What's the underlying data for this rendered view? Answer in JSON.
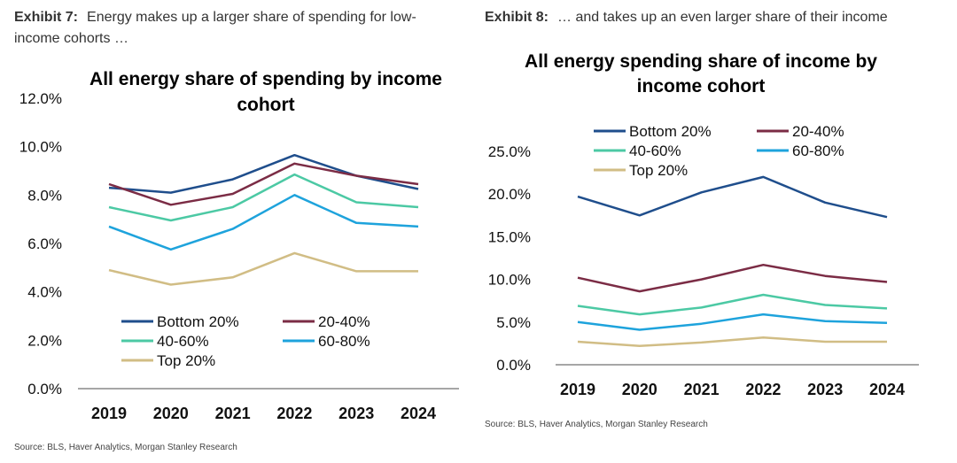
{
  "exhibits": [
    {
      "label": "Exhibit 7:",
      "caption": "Energy makes up a larger share of spending for low-income cohorts …",
      "source": "Source: BLS, Haver Analytics, Morgan Stanley Research"
    },
    {
      "label": "Exhibit 8:",
      "caption": "… and takes up an even larger share of their income",
      "source": "Source: BLS, Haver Analytics, Morgan Stanley Research"
    }
  ],
  "colors": {
    "Bottom 20%": "#1f4e8c",
    "20-40%": "#7b2c45",
    "40-60%": "#4cc9a4",
    "60-80%": "#1ea3dc",
    "Top 20%": "#d1bd85",
    "axis": "#888888"
  },
  "chart_data": [
    {
      "type": "line",
      "title_lines": [
        "All energy share of spending by income",
        "cohort"
      ],
      "x": [
        "2019",
        "2020",
        "2021",
        "2022",
        "2023",
        "2024"
      ],
      "ylim": [
        0,
        12
      ],
      "yticks": [
        0,
        2,
        4,
        6,
        8,
        10,
        12
      ],
      "ytick_labels": [
        "0.0%",
        "2.0%",
        "4.0%",
        "6.0%",
        "8.0%",
        "10.0%",
        "12.0%"
      ],
      "legend_position": "bottom-left",
      "series": [
        {
          "name": "Bottom 20%",
          "values": [
            8.3,
            8.1,
            8.65,
            9.65,
            8.8,
            8.25
          ]
        },
        {
          "name": "20-40%",
          "values": [
            8.45,
            7.6,
            8.05,
            9.3,
            8.8,
            8.45
          ]
        },
        {
          "name": "40-60%",
          "values": [
            7.5,
            6.95,
            7.5,
            8.85,
            7.7,
            7.5
          ]
        },
        {
          "name": "60-80%",
          "values": [
            6.7,
            5.75,
            6.6,
            8.0,
            6.85,
            6.7
          ]
        },
        {
          "name": "Top 20%",
          "values": [
            4.9,
            4.3,
            4.6,
            5.6,
            4.85,
            4.85
          ]
        }
      ]
    },
    {
      "type": "line",
      "title_lines": [
        "All energy spending share of income by",
        "income cohort"
      ],
      "x": [
        "2019",
        "2020",
        "2021",
        "2022",
        "2023",
        "2024"
      ],
      "ylim": [
        0,
        25
      ],
      "yticks": [
        0,
        5,
        10,
        15,
        20,
        25
      ],
      "ytick_labels": [
        "0.0%",
        "5.0%",
        "10.0%",
        "15.0%",
        "20.0%",
        "25.0%"
      ],
      "legend_position": "top",
      "series": [
        {
          "name": "Bottom 20%",
          "values": [
            19.7,
            17.5,
            20.2,
            22.0,
            19.0,
            17.3
          ]
        },
        {
          "name": "20-40%",
          "values": [
            10.2,
            8.6,
            10.0,
            11.7,
            10.4,
            9.7
          ]
        },
        {
          "name": "40-60%",
          "values": [
            6.9,
            5.9,
            6.7,
            8.2,
            7.0,
            6.6
          ]
        },
        {
          "name": "60-80%",
          "values": [
            5.0,
            4.1,
            4.8,
            5.9,
            5.1,
            4.9
          ]
        },
        {
          "name": "Top 20%",
          "values": [
            2.7,
            2.2,
            2.6,
            3.2,
            2.7,
            2.7
          ]
        }
      ]
    }
  ]
}
